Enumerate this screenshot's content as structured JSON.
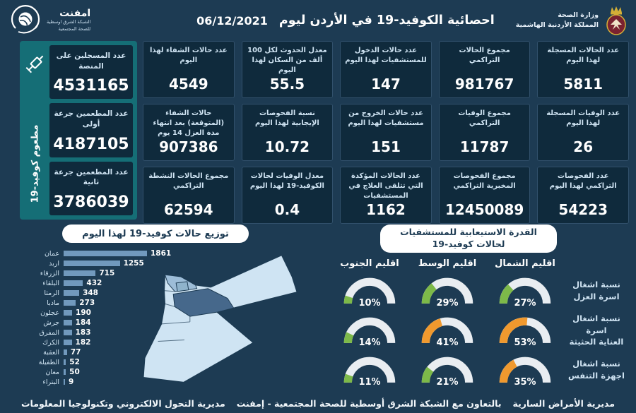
{
  "colors": {
    "background": "#1d3b53",
    "card_bg": "#0f2a3c",
    "card_border": "#31506b",
    "teal_panel": "#156e76",
    "label_text": "#cfe3f2",
    "pill_bg": "#ffffff",
    "pill_text": "#1d3b53",
    "bar_fill": "#7199bd",
    "gauge_track": "#e9edf1",
    "gauge_green": "#7db949",
    "gauge_orange": "#f0992e",
    "map_light": "#cfe4f3",
    "map_mid": "#9dbdd8",
    "map_dark": "#46688b"
  },
  "header": {
    "title": "احصائية الكوفيد-19 في الأردن ليوم",
    "date": "06/12/2021",
    "ministry_line1": "وزارة الصحة",
    "ministry_line2": "المملكة الأردنية الهاشمية",
    "logo_name": "امفنت",
    "logo_sub1": "الشبكة الشرق اوسطية",
    "logo_sub2": "للصحة المجتمعية"
  },
  "vaccine_panel": {
    "vertical_label": "مطعوم كوفيد-19",
    "boxes": [
      {
        "label": "عدد المسجلين على المنصة",
        "value": "4531165"
      },
      {
        "label": "عدد المطعمين جرعة أولى",
        "value": "4187105"
      },
      {
        "label": "عدد المطعمين جرعة ثانية",
        "value": "3786039"
      }
    ]
  },
  "stats_grid": {
    "cards": [
      {
        "label": "عدد الحالات المسجلة لهذا اليوم",
        "value": "5811"
      },
      {
        "label": "مجموع الحالات التراكمي",
        "value": "981767"
      },
      {
        "label": "عدد حالات الدخول للمستشفيات لهذا اليوم",
        "value": "147"
      },
      {
        "label": "معدل الحدوث لكل 100 ألف من السكان لهذا اليوم",
        "value": "55.5"
      },
      {
        "label": "عدد حالات الشفاء لهذا اليوم",
        "value": "4549"
      },
      {
        "label": "عدد الوفيات المسجلة لهذا اليوم",
        "value": "26"
      },
      {
        "label": "مجموع الوفيات التراكمي",
        "value": "11787"
      },
      {
        "label": "عدد حالات الخروج من مستشفيات لهذا اليوم",
        "value": "151"
      },
      {
        "label": "نسبة الفحوصات الإيجابية لهذا اليوم",
        "value": "10.72"
      },
      {
        "label": "حالات الشفاء (المتوقعة) بعد انتهاء مدة العزل 14 يوم",
        "value": "907386"
      },
      {
        "label": "عدد الفحوصات التراكمي لهذا اليوم",
        "value": "54223"
      },
      {
        "label": "مجموع الفحوصات المخبرية التراكمي",
        "value": "12450089"
      },
      {
        "label": "عدد الحالات المؤكدة التي تتلقى العلاج في المستشفيات",
        "value": "1162"
      },
      {
        "label": "معدل الوفيات لحالات الكوفيد-19 لهذا اليوم",
        "value": "0.4"
      },
      {
        "label": "مجموع الحالات النشطة التراكمي",
        "value": "62594"
      }
    ]
  },
  "distribution": {
    "title": "توزيع حالات كوفيد-19 لهذا اليوم",
    "max_value": 1861,
    "bars": [
      {
        "label": "عمان",
        "value": 1861
      },
      {
        "label": "اربد",
        "value": 1255
      },
      {
        "label": "الزرقاء",
        "value": 715
      },
      {
        "label": "البلقاء",
        "value": 432
      },
      {
        "label": "الرمثا",
        "value": 348
      },
      {
        "label": "مادبا",
        "value": 273
      },
      {
        "label": "عجلون",
        "value": 190
      },
      {
        "label": "جرش",
        "value": 184
      },
      {
        "label": "المفرق",
        "value": 183
      },
      {
        "label": "الكرك",
        "value": 182
      },
      {
        "label": "العقبة",
        "value": 77
      },
      {
        "label": "الطفيلة",
        "value": 52
      },
      {
        "label": "معان",
        "value": 50
      },
      {
        "label": "البتراء",
        "value": 9
      }
    ]
  },
  "capacity": {
    "title": "القدرة الاستيعابية للمستشفيات لحالات كوفيد-19",
    "regions": [
      "اقليم الشمال",
      "اقليم الوسط",
      "اقليم الجنوب"
    ],
    "rows": [
      {
        "label_line1": "نسبة اشغال",
        "label_line2": "اسرة العزل",
        "gauges": [
          {
            "value": 27,
            "label": "27%",
            "color": "green"
          },
          {
            "value": 29,
            "label": "29%",
            "color": "green"
          },
          {
            "value": 10,
            "label": "10%",
            "color": "green"
          }
        ]
      },
      {
        "label_line1": "نسبة اشغال اسرة",
        "label_line2": "العناية الحثيثة",
        "gauges": [
          {
            "value": 53,
            "label": "53%",
            "color": "orange"
          },
          {
            "value": 41,
            "label": "41%",
            "color": "orange"
          },
          {
            "value": 14,
            "label": "14%",
            "color": "green"
          }
        ]
      },
      {
        "label_line1": "نسبة اشغال",
        "label_line2": "اجهزة التنفس",
        "gauges": [
          {
            "value": 35,
            "label": "35%",
            "color": "orange"
          },
          {
            "value": 21,
            "label": "21%",
            "color": "green"
          },
          {
            "value": 11,
            "label": "11%",
            "color": "green"
          }
        ]
      }
    ]
  },
  "footer": {
    "right": "مديرية الأمراض السارية",
    "center": "بالتعاون مع الشبكة الشرق أوسطية للصحة المجتمعية - إمفنت",
    "left": "مديرية التحول الالكتروني وتكنولوجيا المعلومات"
  },
  "chart_data": [
    {
      "type": "bar",
      "orientation": "horizontal",
      "title": "توزيع حالات كوفيد-19 لهذا اليوم",
      "categories": [
        "عمان",
        "اربد",
        "الزرقاء",
        "البلقاء",
        "الرمثا",
        "مادبا",
        "عجلون",
        "جرش",
        "المفرق",
        "الكرك",
        "العقبة",
        "الطفيلة",
        "معان",
        "البتراء"
      ],
      "values": [
        1861,
        1255,
        715,
        432,
        348,
        273,
        190,
        184,
        183,
        182,
        77,
        52,
        50,
        9
      ],
      "xlim": [
        0,
        1861
      ]
    },
    {
      "type": "table",
      "title": "القدرة الاستيعابية للمستشفيات لحالات كوفيد-19",
      "columns": [
        "اقليم الشمال",
        "اقليم الوسط",
        "اقليم الجنوب"
      ],
      "rows": [
        {
          "label": "نسبة اشغال اسرة العزل",
          "values": [
            27,
            29,
            10
          ]
        },
        {
          "label": "نسبة اشغال اسرة العناية الحثيثة",
          "values": [
            53,
            41,
            14
          ]
        },
        {
          "label": "نسبة اشغال اجهزة التنفس",
          "values": [
            35,
            21,
            11
          ]
        }
      ],
      "unit": "%"
    }
  ]
}
